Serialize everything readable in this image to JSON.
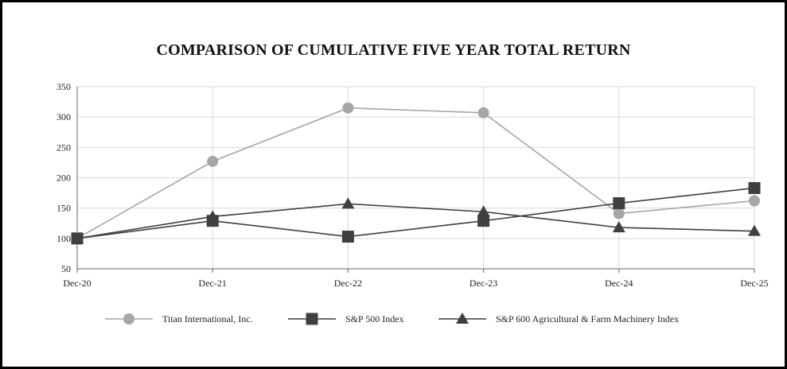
{
  "chart_data": {
    "type": "line",
    "title": "COMPARISON OF CUMULATIVE FIVE YEAR TOTAL RETURN",
    "xlabel": "",
    "ylabel": "",
    "categories": [
      "Dec-20",
      "Dec-21",
      "Dec-22",
      "Dec-23",
      "Dec-24",
      "Dec-25"
    ],
    "ylim": [
      50,
      350
    ],
    "yticks": [
      50,
      100,
      150,
      200,
      250,
      300,
      350
    ],
    "grid": true,
    "legend_position": "bottom",
    "series": [
      {
        "name": "Titan International, Inc.",
        "marker": "circle",
        "color": "#a6a6a6",
        "values": [
          100,
          227,
          315,
          307,
          141,
          162
        ]
      },
      {
        "name": "S&P 500 Index",
        "marker": "square",
        "color": "#3f3f3f",
        "values": [
          100,
          129,
          103,
          129,
          158,
          183
        ]
      },
      {
        "name": "S&P 600 Agricultural & Farm Machinery Index",
        "marker": "triangle",
        "color": "#3f3f3f",
        "values": [
          100,
          136,
          157,
          144,
          118,
          112
        ]
      }
    ]
  }
}
